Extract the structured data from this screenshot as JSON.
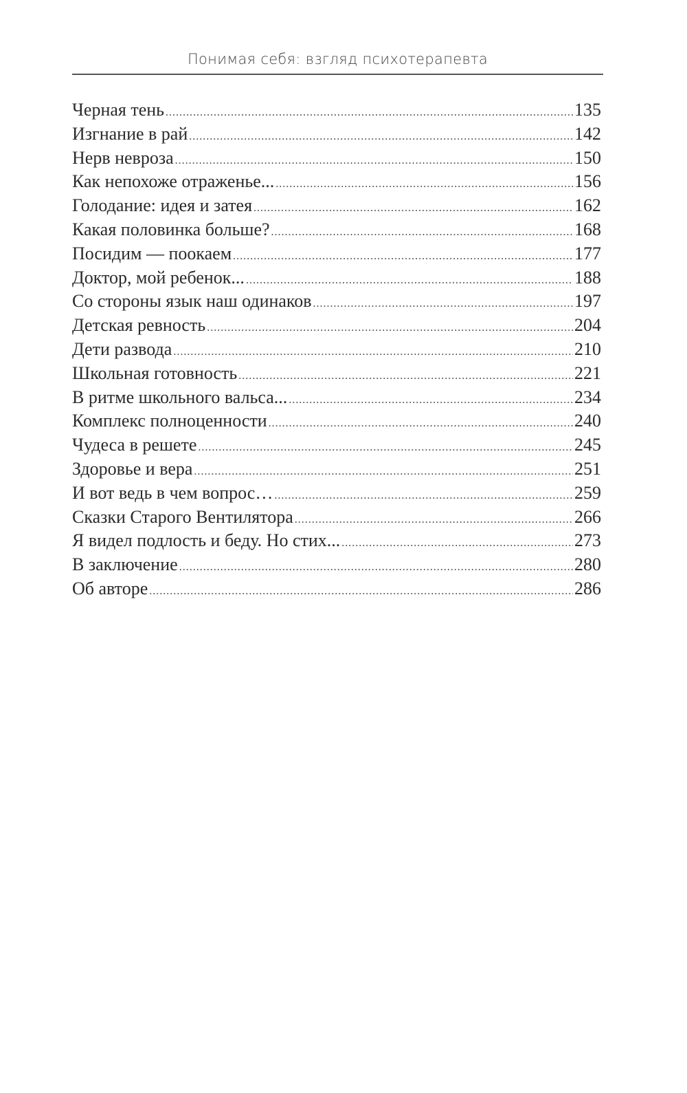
{
  "header": {
    "running_title": "Понимая себя: взгляд психотерапевта"
  },
  "toc": [
    {
      "title": "Черная тень",
      "page": "135"
    },
    {
      "title": "Изгнание в рай",
      "page": "142"
    },
    {
      "title": "Нерв невроза",
      "page": "150"
    },
    {
      "title": "Как непохоже отраженье...",
      "page": "156"
    },
    {
      "title": "Голодание: идея и затея",
      "page": "162"
    },
    {
      "title": "Какая половинка больше?",
      "page": "168"
    },
    {
      "title": "Посидим — поокаем",
      "page": "177"
    },
    {
      "title": "Доктор, мой ребенок...",
      "page": "188"
    },
    {
      "title": "Со стороны язык наш одинаков",
      "page": "197"
    },
    {
      "title": "Детская ревность",
      "page": "204"
    },
    {
      "title": "Дети развода",
      "page": "210"
    },
    {
      "title": "Школьная готовность",
      "page": "221"
    },
    {
      "title": "В ритме школьного вальса...",
      "page": "234"
    },
    {
      "title": "Комплекс полноценности",
      "page": "240"
    },
    {
      "title": "Чудеса в решете",
      "page": "245"
    },
    {
      "title": "Здоровье и вера",
      "page": "251"
    },
    {
      "title": "И вот ведь в чем вопрос…",
      "page": "259"
    },
    {
      "title": "Сказки Старого Вентилятора",
      "page": "266"
    },
    {
      "title": "Я видел подлость и беду. Но стих...",
      "page": "273"
    },
    {
      "title": "В заключение",
      "page": "280"
    },
    {
      "title": "Об авторе",
      "page": "286"
    }
  ]
}
